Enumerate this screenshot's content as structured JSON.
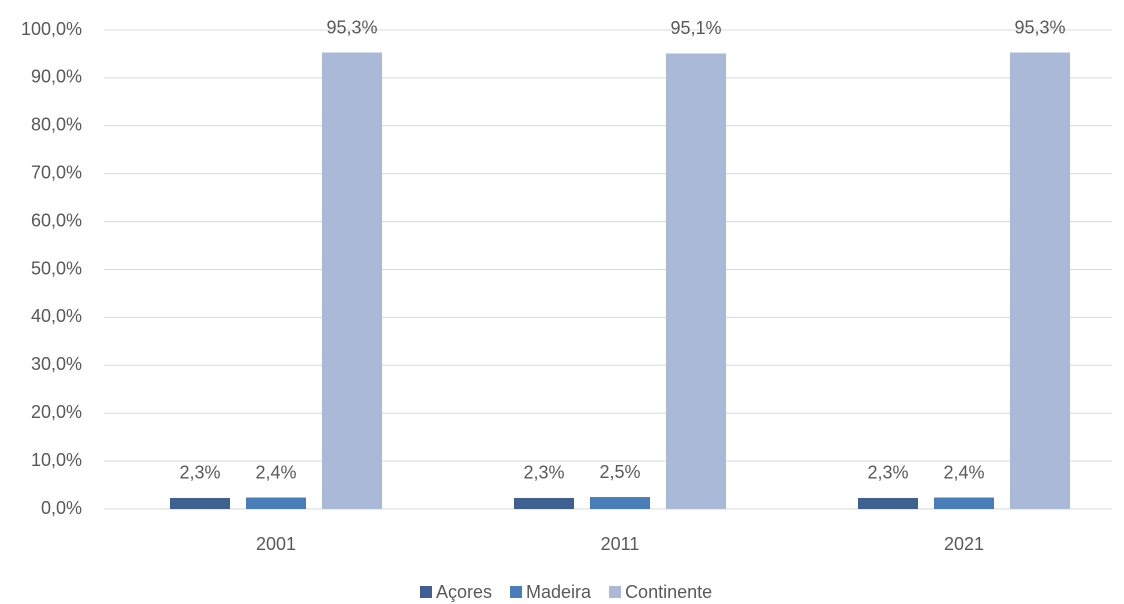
{
  "chart_data": {
    "type": "bar",
    "categories": [
      "2001",
      "2011",
      "2021"
    ],
    "series": [
      {
        "name": "Açores",
        "color": "#3e6191",
        "values": [
          2.3,
          2.3,
          2.3
        ],
        "value_labels": [
          "2,3%",
          "2,3%",
          "2,3%"
        ]
      },
      {
        "name": "Madeira",
        "color": "#4a7ebb",
        "values": [
          2.4,
          2.5,
          2.4
        ],
        "value_labels": [
          "2,4%",
          "2,5%",
          "2,4%"
        ]
      },
      {
        "name": "Continente",
        "color": "#a9b9d7",
        "values": [
          95.3,
          95.1,
          95.3
        ],
        "value_labels": [
          "95,3%",
          "95,1%",
          "95,3%"
        ]
      }
    ],
    "ylim": [
      0,
      100
    ],
    "yticks": [
      {
        "value": 0,
        "label": "0,0%"
      },
      {
        "value": 10,
        "label": "10,0%"
      },
      {
        "value": 20,
        "label": "20,0%"
      },
      {
        "value": 30,
        "label": "30,0%"
      },
      {
        "value": 40,
        "label": "40,0%"
      },
      {
        "value": 50,
        "label": "50,0%"
      },
      {
        "value": 60,
        "label": "60,0%"
      },
      {
        "value": 70,
        "label": "70,0%"
      },
      {
        "value": 80,
        "label": "80,0%"
      },
      {
        "value": 90,
        "label": "90,0%"
      },
      {
        "value": 100,
        "label": "100,0%"
      }
    ],
    "grid": true,
    "legend": "bottom"
  }
}
